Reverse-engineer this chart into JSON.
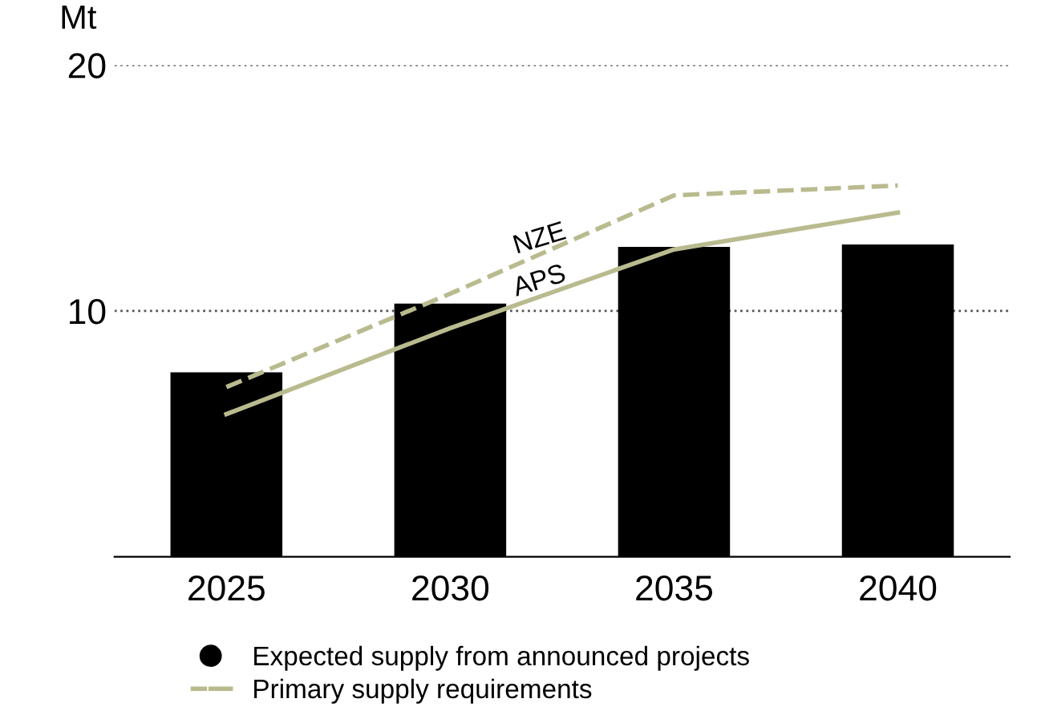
{
  "chart_data": {
    "type": "bar",
    "ylabel": "Mt",
    "categories": [
      "2025",
      "2030",
      "2035",
      "2040"
    ],
    "series": [
      {
        "name": "Expected supply from announced projects",
        "color": "#000000",
        "values": [
          7.5,
          10.3,
          12.6,
          12.7
        ]
      },
      {
        "name": "NZE",
        "type": "line",
        "color": "#b9bb8f",
        "line_style": "dashed",
        "values": [
          6.9,
          10.7,
          14.7,
          15.1
        ]
      },
      {
        "name": "APS",
        "type": "line",
        "color": "#b9bb8f",
        "line_style": "solid",
        "values": [
          5.8,
          9.3,
          12.5,
          14.0
        ]
      }
    ],
    "annotations": [
      "Primary supply requirements"
    ],
    "ylim": [
      0,
      20
    ],
    "yticks": [
      10,
      20
    ],
    "grid": "y",
    "legend": "bottom"
  }
}
